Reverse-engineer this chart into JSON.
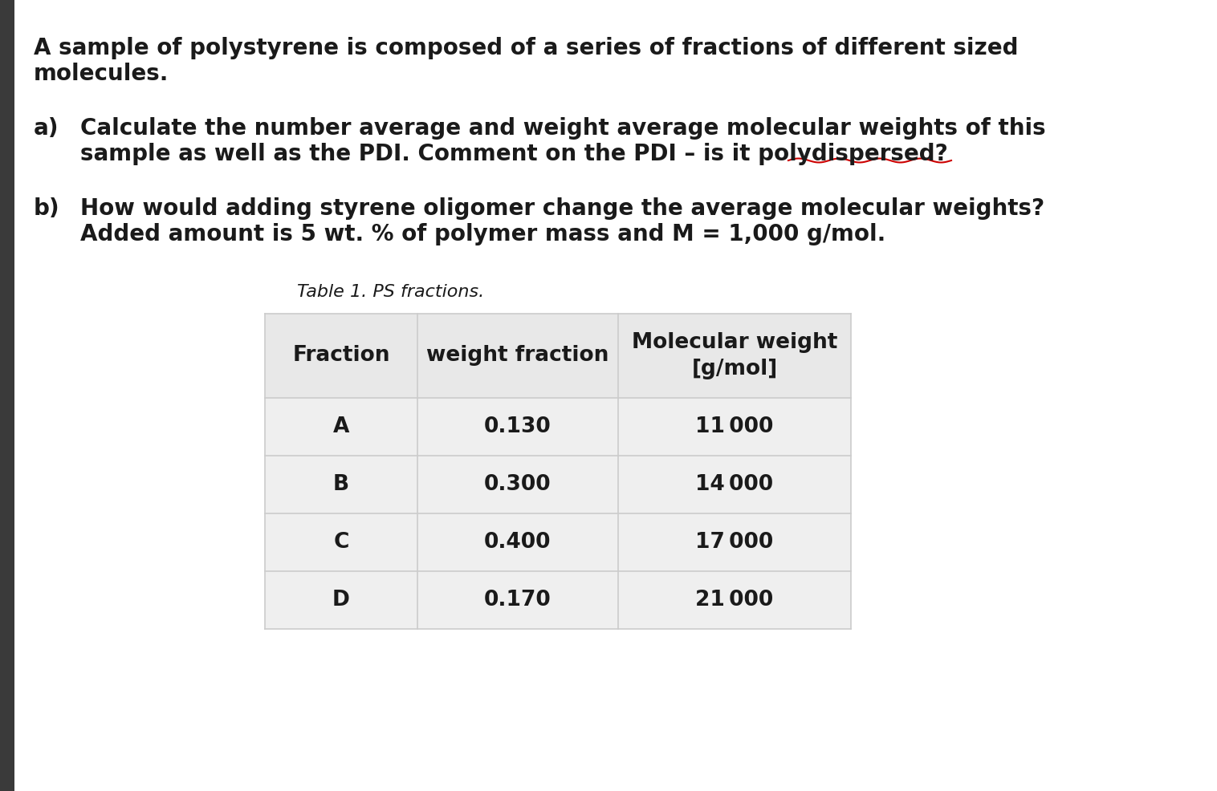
{
  "bg_color": "#ffffff",
  "left_bar_color": "#3a3a3a",
  "text_color": "#1a1a1a",
  "paragraph1_line1": "A sample of polystyrene is composed of a series of fractions of different sized",
  "paragraph1_line2": "molecules.",
  "para_a_label": "a)",
  "para_a_line1": "Calculate the number average and weight average molecular weights of this",
  "para_a_line2": "sample as well as the PDI. Comment on the PDI – is it polydispersed?",
  "para_b_label": "b)",
  "para_b_line1": "How would adding styrene oligomer change the average molecular weights?",
  "para_b_line2": "Added amount is 5 wt. % of polymer mass and M = 1,000 g/mol.",
  "table_title": "Table 1. PS fractions.",
  "table_headers": [
    "Fraction",
    "weight fraction",
    "Molecular weight\n[g/mol]"
  ],
  "table_data": [
    [
      "A",
      "0.130",
      "11 000"
    ],
    [
      "B",
      "0.300",
      "14 000"
    ],
    [
      "C",
      "0.400",
      "17 000"
    ],
    [
      "D",
      "0.170",
      "21 000"
    ]
  ],
  "header_bg": "#e8e8e8",
  "row_bg": "#efefef",
  "table_border_color": "#cccccc",
  "underline_color": "#cc0000",
  "fontsize_body": 20,
  "fontsize_table": 19,
  "fontsize_table_title": 16,
  "fontsize_label": 20
}
